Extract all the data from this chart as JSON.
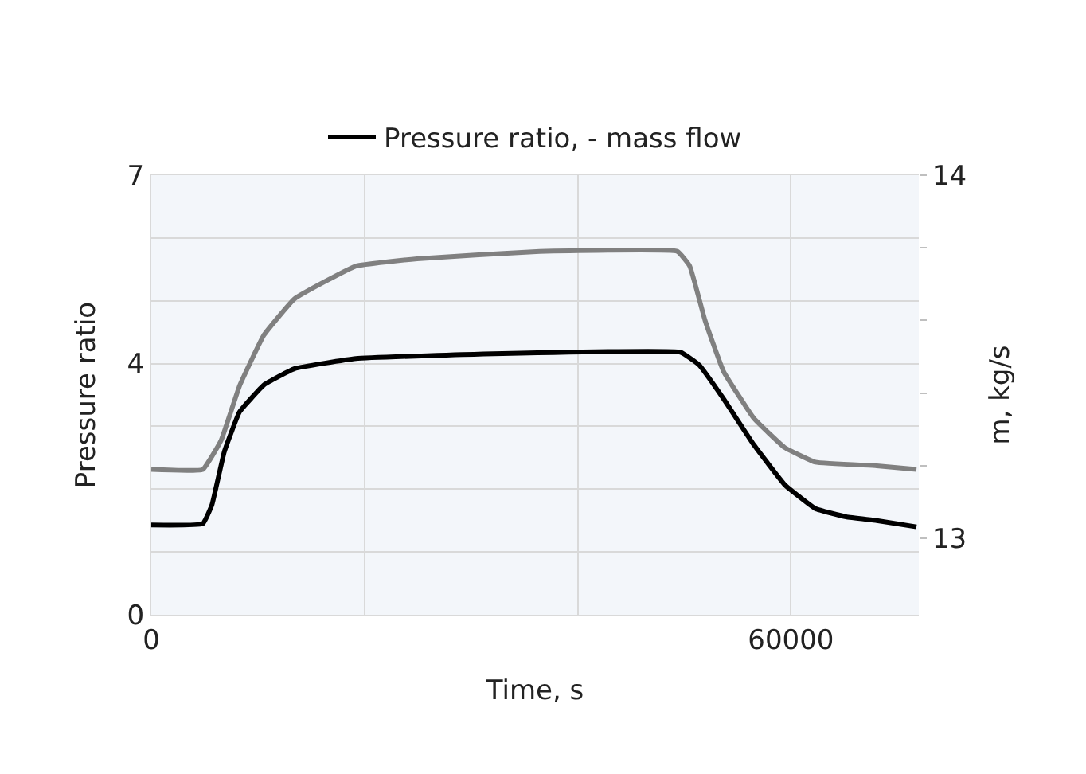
{
  "chart_data": {
    "type": "line",
    "xlabel": "Time, s",
    "ylabel": "Pressure ratio",
    "y2label": "m, kg/s",
    "xlim": [
      0,
      72000
    ],
    "xticks": [
      0,
      {
        "value": 20000,
        "label": null
      },
      {
        "value": 40000,
        "label": null
      },
      60000
    ],
    "ylim": [
      0,
      7
    ],
    "yticks": [
      0,
      {
        "value": 1,
        "label": null
      },
      {
        "value": 2,
        "label": null
      },
      {
        "value": 3,
        "label": null
      },
      4,
      {
        "value": 5,
        "label": null
      },
      {
        "value": 6,
        "label": null
      },
      7
    ],
    "y2lim": [
      12.79,
      14
    ],
    "y2ticks": [
      13,
      {
        "value": 13.2,
        "label": null
      },
      {
        "value": 13.4,
        "label": null
      },
      {
        "value": 13.6,
        "label": null
      },
      {
        "value": 13.8,
        "label": null
      },
      14
    ],
    "grid": true,
    "legend": "top",
    "line_style": "solid",
    "marker": "none",
    "series": [
      {
        "name": "Pressure ratio, - mass flow",
        "color": "#000000",
        "x": [
          0,
          4830,
          5690,
          6840,
          8280,
          10570,
          13450,
          19200,
          30700,
          49650,
          51380,
          53680,
          56550,
          59430,
          62300,
          65170,
          68050,
          71780
        ],
        "values": [
          1.43,
          1.45,
          1.75,
          2.59,
          3.23,
          3.66,
          3.92,
          4.08,
          4.15,
          4.18,
          3.98,
          3.44,
          2.7,
          2.07,
          1.69,
          1.56,
          1.5,
          1.4
        ]
      },
      {
        "color": "#808080",
        "axis": "y2",
        "x": [
          0,
          4830,
          6550,
          8280,
          10570,
          13450,
          19200,
          24940,
          36440,
          49360,
          50510,
          51950,
          53680,
          56550,
          59430,
          62300,
          68050,
          71780
        ],
        "values": [
          13.19,
          13.19,
          13.27,
          13.42,
          13.56,
          13.66,
          13.75,
          13.77,
          13.79,
          13.79,
          13.75,
          13.6,
          13.46,
          13.33,
          13.25,
          13.21,
          13.2,
          13.19
        ]
      }
    ]
  }
}
